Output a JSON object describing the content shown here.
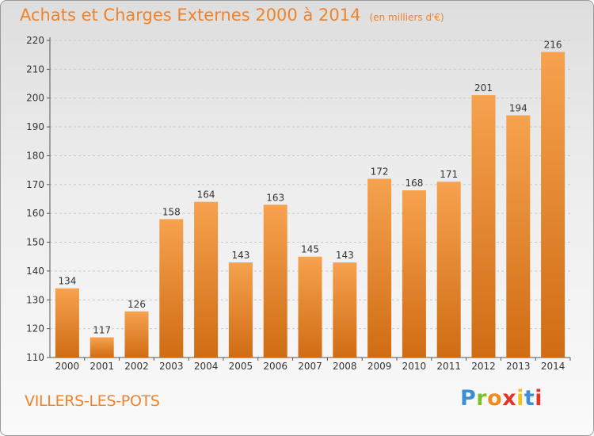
{
  "title": "Achats et Charges Externes 2000 à 2014",
  "unit_note": "(en milliers d'€)",
  "commune": "VILLERS-LES-POTS",
  "logo": {
    "text": "Proxiti",
    "letter_colors": [
      "#3a8fd6",
      "#7fbf2a",
      "#f08a1e",
      "#e2342a",
      "#f0c020",
      "#3a8fd6",
      "#e2342a"
    ]
  },
  "colors": {
    "accent": "#f0832a",
    "bar_top": "#f6a24e",
    "bar_bottom": "#d06c14",
    "grid": "#c8c8c8",
    "axis": "#555555",
    "text": "#333333"
  },
  "chart_data": {
    "type": "bar",
    "title": "Achats et Charges Externes 2000 à 2014",
    "subtitle": "(en milliers d'€)",
    "xlabel": "",
    "ylabel": "",
    "categories": [
      "2000",
      "2001",
      "2002",
      "2003",
      "2004",
      "2005",
      "2006",
      "2007",
      "2008",
      "2009",
      "2010",
      "2011",
      "2012",
      "2013",
      "2014"
    ],
    "values": [
      134,
      117,
      126,
      158,
      164,
      143,
      163,
      145,
      143,
      172,
      168,
      171,
      201,
      194,
      216
    ],
    "ylim": [
      110,
      220
    ],
    "yticks": [
      110,
      120,
      130,
      140,
      150,
      160,
      170,
      180,
      190,
      200,
      210,
      220
    ],
    "grid": true,
    "legend": "none",
    "data_labels": true
  }
}
